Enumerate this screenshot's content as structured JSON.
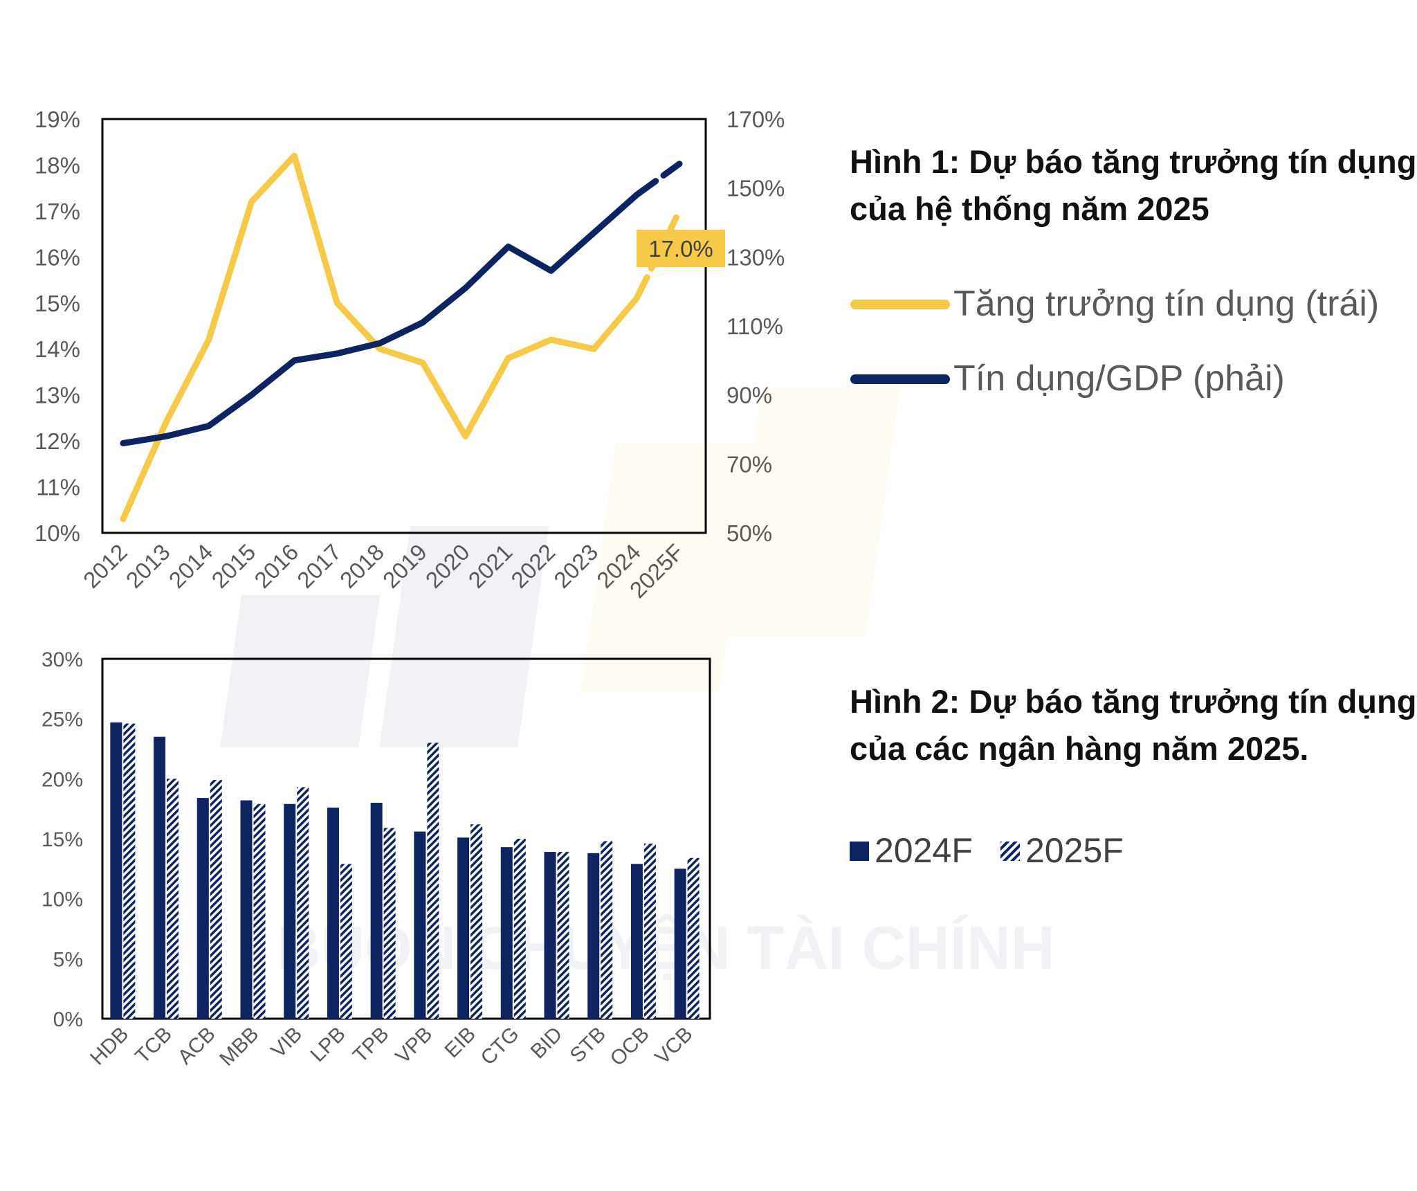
{
  "colors": {
    "yellow": "#F7C948",
    "navy": "#0E2461",
    "label_bg": "#F7C948",
    "axis": "#595959",
    "frame": "#000000"
  },
  "watermark": {
    "text": "BUÔN CHUYỆN TÀI CHÍNH"
  },
  "chart_data": [
    {
      "type": "line",
      "title": "Hình 1: Dự báo tăng trưởng tín dụng của hệ thống năm 2025",
      "title_lines": [
        "Hình 1: Dự báo tăng trưởng tín dụng",
        "của hệ thống năm 2025"
      ],
      "categories": [
        "2012",
        "2013",
        "2014",
        "2015",
        "2016",
        "2017",
        "2018",
        "2019",
        "2020",
        "2021",
        "2022",
        "2023",
        "2024",
        "2025F"
      ],
      "y_left_ticks": [
        "19%",
        "18%",
        "17%",
        "16%",
        "15%",
        "14%",
        "13%",
        "12%",
        "11%",
        "10%"
      ],
      "y_right_ticks": [
        "170%",
        "150%",
        "130%",
        "110%",
        "90%",
        "70%",
        "50%"
      ],
      "ylim_left": [
        10,
        19
      ],
      "ylim_right": [
        50,
        170
      ],
      "series": [
        {
          "name": "Tăng trưởng tín dụng (trái)",
          "axis": "left",
          "values": [
            10.3,
            12.4,
            14.2,
            17.2,
            18.2,
            15.0,
            14.0,
            13.7,
            12.1,
            13.8,
            14.2,
            14.0,
            15.1,
            17.0
          ],
          "forecast_from_index": 12
        },
        {
          "name": "Tín dụng/GDP (phải)",
          "axis": "right",
          "values": [
            76,
            78,
            81,
            90,
            100,
            102,
            105,
            111,
            121,
            133,
            126,
            137,
            148,
            157
          ],
          "forecast_from_index": 12
        }
      ],
      "annotation": "17.0%",
      "legend": "right"
    },
    {
      "type": "bar",
      "title": "Hình 2: Dự báo tăng trưởng tín dụng của các ngân hàng năm 2025.",
      "title_lines": [
        "Hình 2: Dự báo tăng trưởng tín dụng",
        "của các ngân hàng năm 2025."
      ],
      "categories": [
        "HDB",
        "TCB",
        "ACB",
        "MBB",
        "VIB",
        "LPB",
        "TPB",
        "VPB",
        "EIB",
        "CTG",
        "BID",
        "STB",
        "OCB",
        "VCB"
      ],
      "y_ticks": [
        "30%",
        "25%",
        "20%",
        "15%",
        "10%",
        "5%",
        "0%"
      ],
      "ylim": [
        0,
        30
      ],
      "series": [
        {
          "name": "2024F",
          "values": [
            24.7,
            23.5,
            18.4,
            18.2,
            17.9,
            17.6,
            18.0,
            15.6,
            15.1,
            14.3,
            13.9,
            13.8,
            12.9,
            12.5
          ]
        },
        {
          "name": "2025F",
          "values": [
            24.6,
            20.0,
            19.9,
            17.9,
            19.3,
            12.9,
            15.9,
            23.0,
            16.2,
            15.0,
            13.9,
            14.8,
            14.6,
            13.4
          ]
        }
      ],
      "legend": "right"
    }
  ]
}
